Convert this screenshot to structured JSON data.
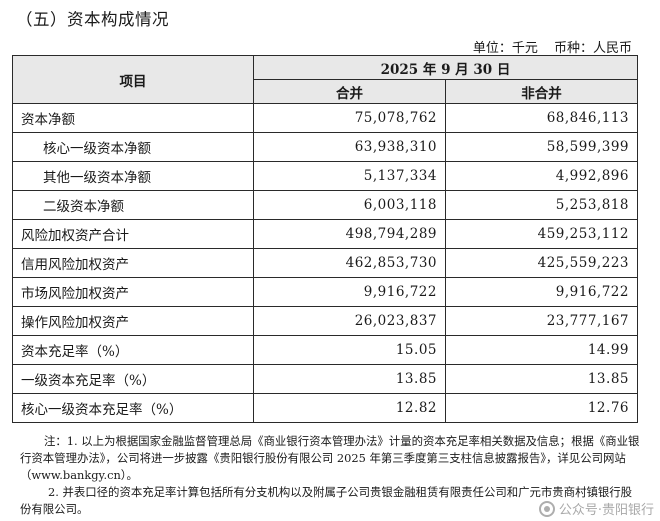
{
  "section_title": "（五）资本构成情况",
  "unit": {
    "unit_text": "单位：千元",
    "currency_text": "币种：人民币"
  },
  "table": {
    "item_header": "项目",
    "date_header": "2025 年 9 月 30 日",
    "col_consolidated": "合并",
    "col_nonconsolidated": "非合并",
    "rows": [
      {
        "label": "资本净额",
        "consolidated": "75,078,762",
        "nonconsolidated": "68,846,113"
      },
      {
        "label": "核心一级资本净额",
        "consolidated": "63,938,310",
        "nonconsolidated": "58,599,399"
      },
      {
        "label": "其他一级资本净额",
        "consolidated": "5,137,334",
        "nonconsolidated": "4,992,896"
      },
      {
        "label": "二级资本净额",
        "consolidated": "6,003,118",
        "nonconsolidated": "5,253,818"
      },
      {
        "label": "风险加权资产合计",
        "consolidated": "498,794,289",
        "nonconsolidated": "459,253,112"
      },
      {
        "label": "信用风险加权资产",
        "consolidated": "462,853,730",
        "nonconsolidated": "425,559,223"
      },
      {
        "label": "市场风险加权资产",
        "consolidated": "9,916,722",
        "nonconsolidated": "9,916,722"
      },
      {
        "label": "操作风险加权资产",
        "consolidated": "26,023,837",
        "nonconsolidated": "23,777,167"
      },
      {
        "label": "资本充足率（%）",
        "consolidated": "15.05",
        "nonconsolidated": "14.99"
      },
      {
        "label": "一级资本充足率（%）",
        "consolidated": "13.85",
        "nonconsolidated": "13.85"
      },
      {
        "label": "核心一级资本充足率（%）",
        "consolidated": "12.82",
        "nonconsolidated": "12.76"
      }
    ]
  },
  "notes": {
    "note1": "注：1. 以上为根据国家金融监督管理总局《商业银行资本管理办法》计量的资本充足率相关数据及信息；根据《商业银行资本管理办法》，公司将进一步披露《贵阳银行股份有限公司 2025 年第三季度第三支柱信息披露报告》，详见公司网站（www.bankgy.cn）。",
    "note2": "2. 并表口径的资本充足率计算包括所有分支机构以及附属子公司贵银金融租赁有限责任公司和广元市贵商村镇银行股份有限公司。"
  },
  "watermark": {
    "text": "公众号·贵阳银行"
  }
}
